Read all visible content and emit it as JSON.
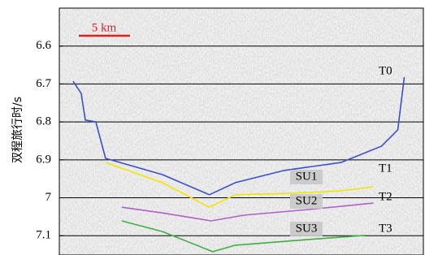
{
  "chart_data": {
    "type": "line",
    "y_label": "双程旅行时/s",
    "ylim": [
      7.15,
      6.5
    ],
    "yticks": [
      6.6,
      6.7,
      6.8,
      6.9,
      7.0,
      7.1
    ],
    "xlim": [
      0,
      35.6
    ],
    "grid": true,
    "scale_bar": "5 km",
    "annotations": [
      "SU1",
      "SU2",
      "SU3"
    ],
    "series": [
      {
        "name": "T0",
        "color": "#3a4fc8",
        "x": [
          1.35,
          2.14,
          2.54,
          3.57,
          4.52,
          10.08,
          14.68,
          17.22,
          21.98,
          27.54,
          31.51,
          33.1,
          33.73
        ],
        "values": [
          6.693,
          6.725,
          6.795,
          6.8,
          6.896,
          6.939,
          6.992,
          6.96,
          6.928,
          6.907,
          6.864,
          6.821,
          6.682
        ]
      },
      {
        "name": "T1",
        "color": "#f2e600",
        "x": [
          4.52,
          10.08,
          14.68,
          17.22,
          22.78,
          27.54,
          30.71
        ],
        "values": [
          6.907,
          6.96,
          7.025,
          6.992,
          6.988,
          6.982,
          6.971
        ]
      },
      {
        "name": "T2",
        "color": "#b060c8",
        "x": [
          6.11,
          10.08,
          14.84,
          18.02,
          24.37,
          30.71
        ],
        "values": [
          7.025,
          7.04,
          7.061,
          7.046,
          7.031,
          7.014
        ]
      },
      {
        "name": "T3",
        "color": "#3cb043",
        "x": [
          6.11,
          10.08,
          15.0,
          17.22,
          24.37,
          29.92
        ],
        "values": [
          7.061,
          7.089,
          7.142,
          7.125,
          7.11,
          7.099
        ]
      }
    ]
  }
}
